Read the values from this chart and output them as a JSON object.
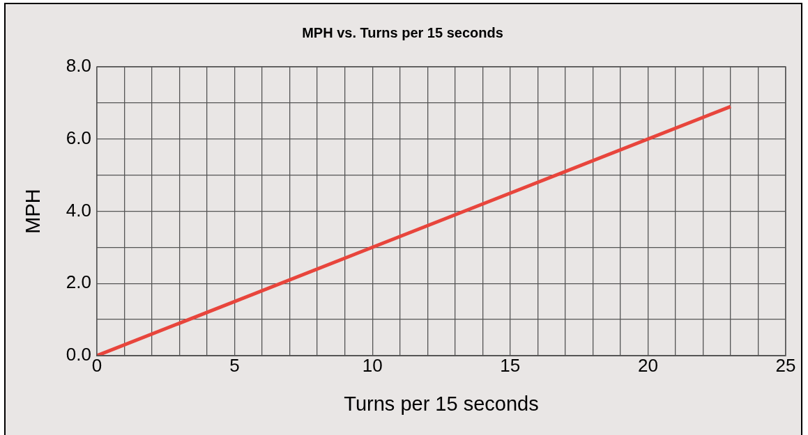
{
  "chart_data": {
    "type": "line",
    "title": "MPH vs. Turns per 15 seconds",
    "xlabel": "Turns per 15 seconds",
    "ylabel": "MPH",
    "x": [
      0,
      23
    ],
    "series": [
      {
        "color": "#e8453c",
        "values": [
          0,
          6.9
        ]
      }
    ],
    "xlim": [
      0,
      25
    ],
    "xticks": [
      0,
      {
        "value": 1,
        "label": null
      },
      {
        "value": 2,
        "label": null
      },
      {
        "value": 3,
        "label": null
      },
      {
        "value": 4,
        "label": null
      },
      5,
      {
        "value": 6,
        "label": null
      },
      {
        "value": 7,
        "label": null
      },
      {
        "value": 8,
        "label": null
      },
      {
        "value": 9,
        "label": null
      },
      10,
      {
        "value": 11,
        "label": null
      },
      {
        "value": 12,
        "label": null
      },
      {
        "value": 13,
        "label": null
      },
      {
        "value": 14,
        "label": null
      },
      15,
      {
        "value": 16,
        "label": null
      },
      {
        "value": 17,
        "label": null
      },
      {
        "value": 18,
        "label": null
      },
      {
        "value": 19,
        "label": null
      },
      20,
      {
        "value": 21,
        "label": null
      },
      {
        "value": 22,
        "label": null
      },
      {
        "value": 23,
        "label": null
      },
      {
        "value": 24,
        "label": null
      },
      25
    ],
    "ylim": [
      0,
      8
    ],
    "yticks": [
      {
        "value": 0,
        "label": "0.0"
      },
      {
        "value": 1,
        "label": null
      },
      {
        "value": 2,
        "label": "2.0"
      },
      {
        "value": 3,
        "label": null
      },
      {
        "value": 4,
        "label": "4.0"
      },
      {
        "value": 5,
        "label": null
      },
      {
        "value": 6,
        "label": "6.0"
      },
      {
        "value": 7,
        "label": null
      },
      {
        "value": 8,
        "label": "8.0"
      }
    ],
    "grid": true,
    "legend": false,
    "marker": "none",
    "line_style": "solid"
  }
}
